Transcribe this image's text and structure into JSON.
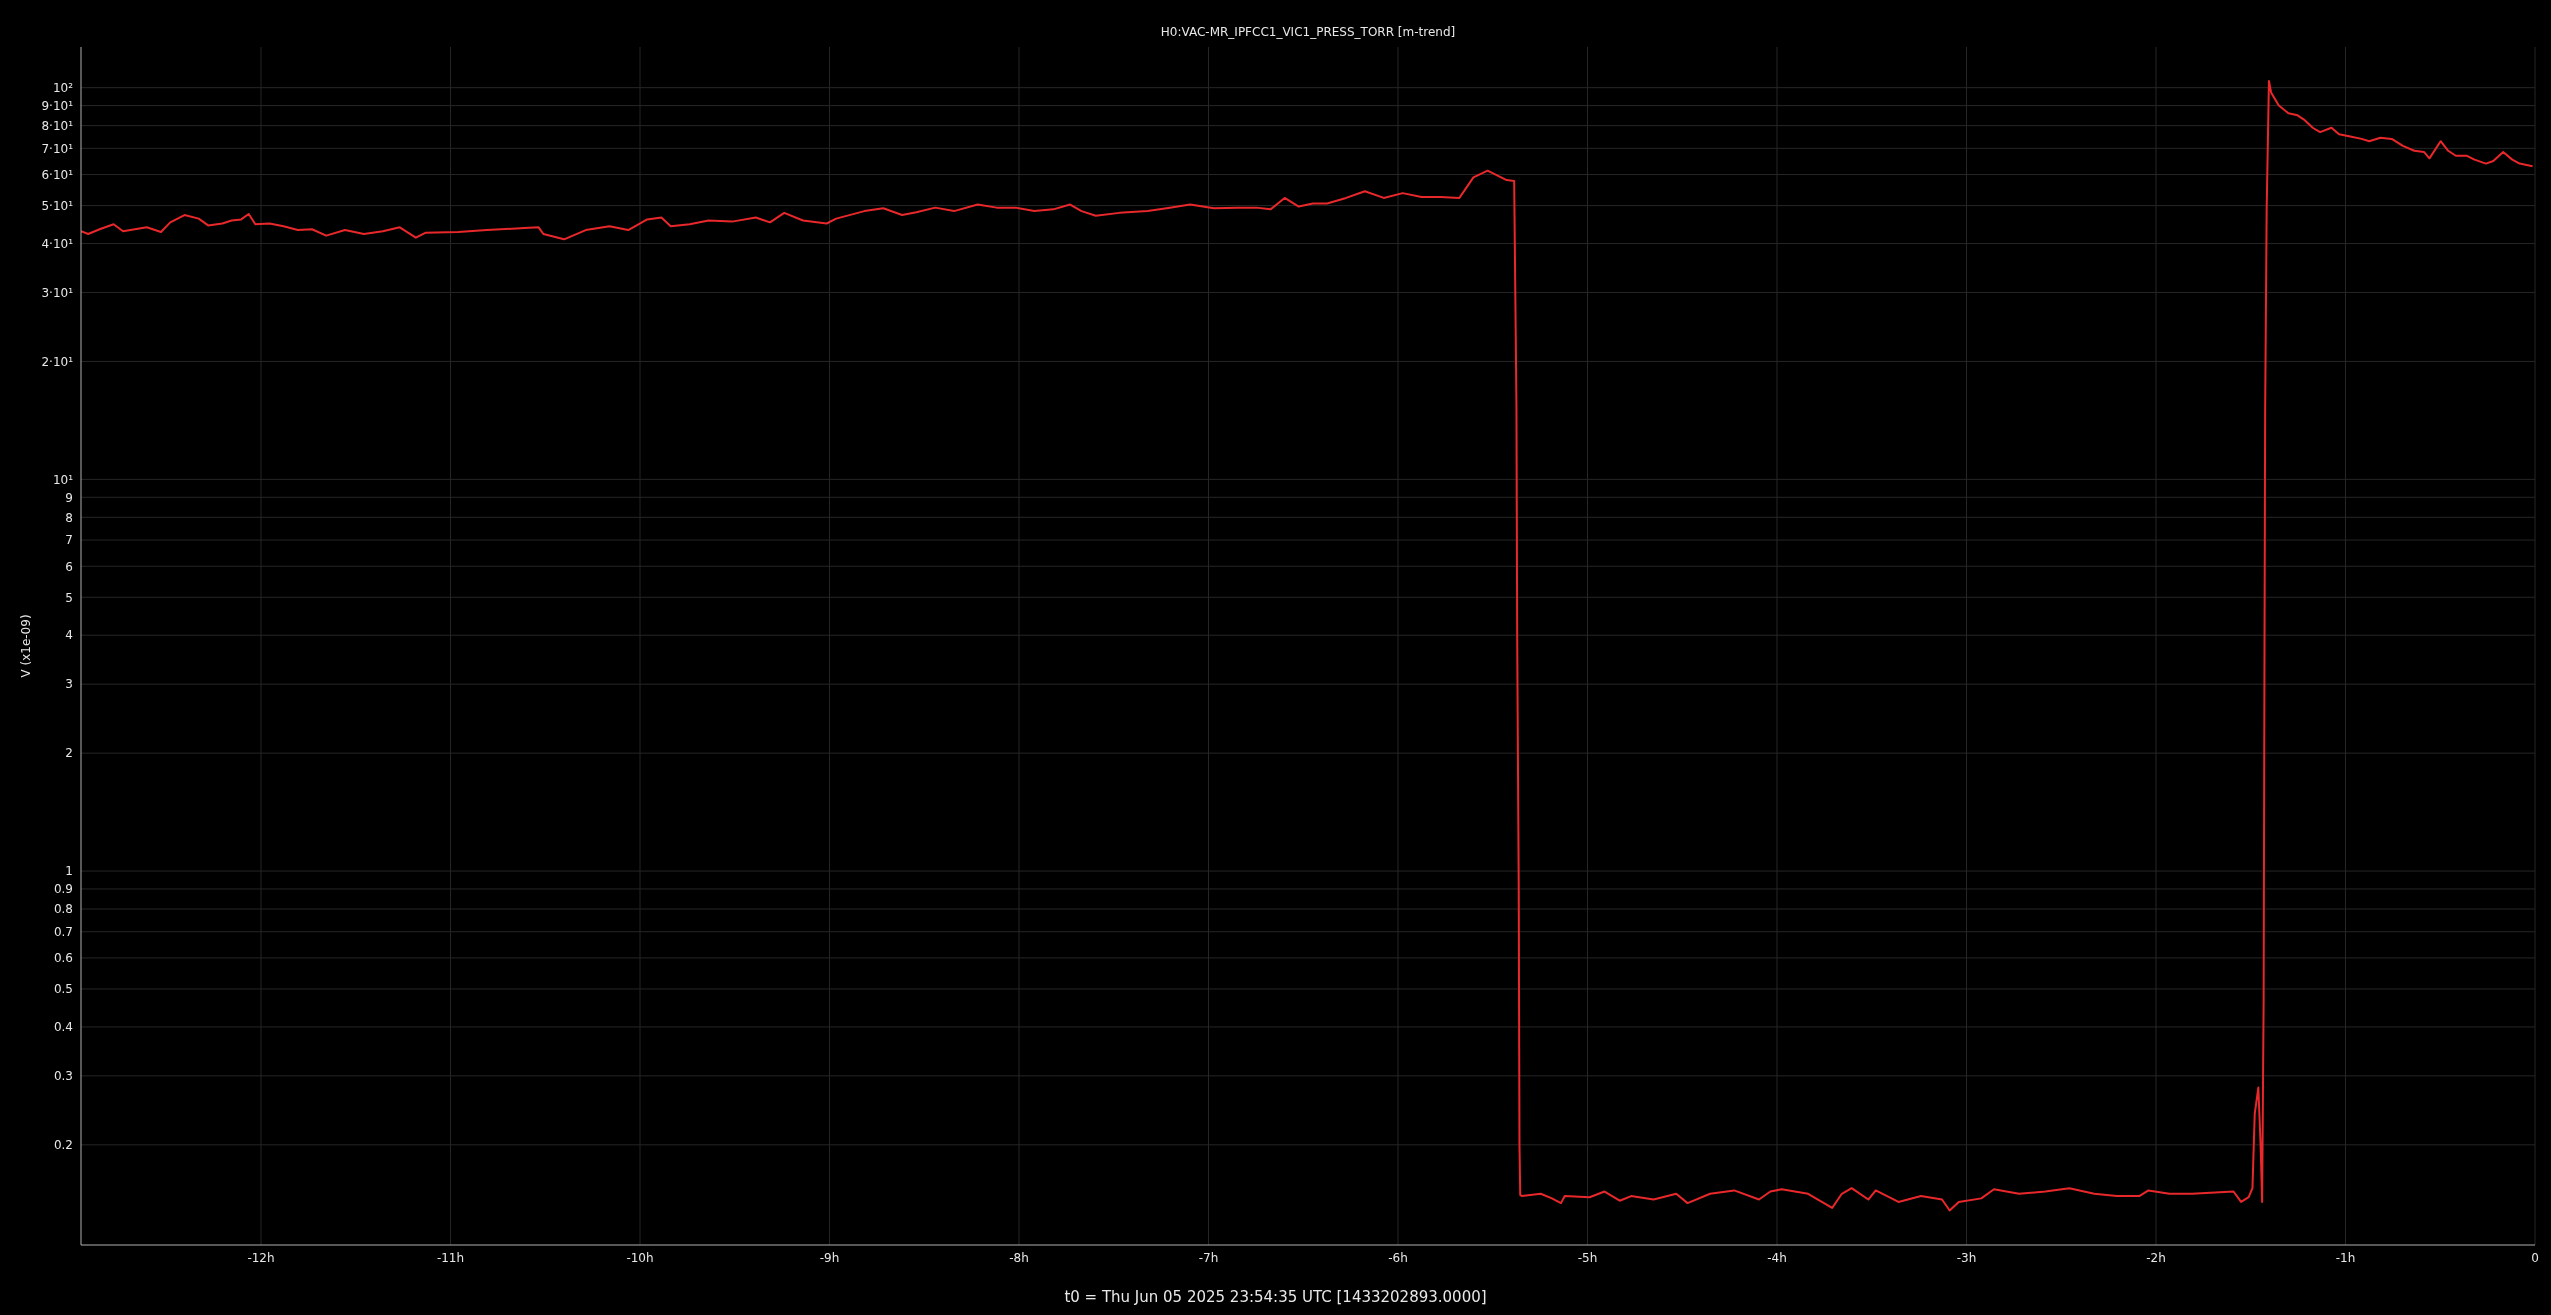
{
  "chart_data": {
    "type": "line",
    "title": "H0:VAC-MR_IPFCC1_VIC1_PRESS_TORR [m-trend]",
    "xlabel": "t0 = Thu Jun 05 2025 23:54:35 UTC [1433202893.0000]",
    "ylabel": "V (x1e-09)",
    "x": [
      -12.95,
      -12.912,
      -12.852,
      -12.778,
      -12.728,
      -12.603,
      -12.528,
      -12.479,
      -12.404,
      -12.329,
      -12.279,
      -12.204,
      -12.155,
      -12.105,
      -12.065,
      -12.03,
      -11.955,
      -11.881,
      -11.806,
      -11.731,
      -11.656,
      -11.557,
      -11.457,
      -11.357,
      -11.268,
      -11.183,
      -11.133,
      -10.959,
      -10.809,
      -10.61,
      -10.535,
      -10.51,
      -10.401,
      -10.286,
      -10.161,
      -10.062,
      -9.962,
      -9.887,
      -9.838,
      -9.738,
      -9.638,
      -9.514,
      -9.389,
      -9.314,
      -9.239,
      -9.14,
      -9.015,
      -8.965,
      -8.816,
      -8.716,
      -8.617,
      -8.542,
      -8.442,
      -8.343,
      -8.218,
      -8.118,
      -8.019,
      -7.919,
      -7.819,
      -7.73,
      -7.67,
      -7.595,
      -7.47,
      -7.321,
      -7.221,
      -7.097,
      -6.972,
      -6.847,
      -6.748,
      -6.673,
      -6.598,
      -6.524,
      -6.449,
      -6.374,
      -6.274,
      -6.175,
      -6.075,
      -5.975,
      -5.876,
      -5.776,
      -5.676,
      -5.602,
      -5.527,
      -5.477,
      -5.427,
      -5.387,
      -5.379,
      -5.375,
      -5.371,
      -5.363,
      -5.359,
      -5.355,
      -5.347,
      -5.247,
      -5.188,
      -5.14,
      -5.12,
      -4.989,
      -4.91,
      -4.83,
      -4.77,
      -4.651,
      -4.532,
      -4.472,
      -4.353,
      -4.226,
      -4.095,
      -4.035,
      -3.975,
      -3.836,
      -3.709,
      -3.658,
      -3.606,
      -3.518,
      -3.479,
      -3.359,
      -3.24,
      -3.129,
      -3.089,
      -3.041,
      -2.922,
      -2.855,
      -2.723,
      -2.584,
      -2.457,
      -2.326,
      -2.207,
      -2.088,
      -2.04,
      -1.929,
      -1.809,
      -1.591,
      -1.551,
      -1.511,
      -1.491,
      -1.479,
      -1.46,
      -1.448,
      -1.44,
      -1.432,
      -1.428,
      -1.424,
      -1.416,
      -1.404,
      -1.392,
      -1.352,
      -1.301,
      -1.253,
      -1.221,
      -1.173,
      -1.134,
      -1.074,
      -1.034,
      -0.975,
      -0.915,
      -0.875,
      -0.816,
      -0.756,
      -0.697,
      -0.637,
      -0.585,
      -0.557,
      -0.498,
      -0.458,
      -0.418,
      -0.359,
      -0.319,
      -0.259,
      -0.22,
      -0.168,
      -0.12,
      -0.081,
      -0.013
    ],
    "series": [
      {
        "color": "#e8282b",
        "values": [
          43,
          42.3,
          43.5,
          44.8,
          43,
          44,
          42.8,
          45.3,
          47.3,
          46.3,
          44.5,
          45,
          45.8,
          46.1,
          47.6,
          44.8,
          45,
          44.3,
          43.3,
          43.5,
          41.9,
          43.3,
          42.3,
          43,
          44,
          41.4,
          42.6,
          42.8,
          43.3,
          43.8,
          44,
          42.3,
          41,
          43.3,
          44.3,
          43.3,
          46.1,
          46.6,
          44.3,
          44.8,
          45.8,
          45.5,
          46.6,
          45.3,
          47.9,
          45.8,
          45,
          46.3,
          48.4,
          49.2,
          47.3,
          48.1,
          49.4,
          48.4,
          50.3,
          49.4,
          49.4,
          48.4,
          48.9,
          50.3,
          48.4,
          47.1,
          47.9,
          48.4,
          49.2,
          50.3,
          49.2,
          49.4,
          49.4,
          48.9,
          52.3,
          49.7,
          50.6,
          50.6,
          52.3,
          54.4,
          52.3,
          53.8,
          52.6,
          52.6,
          52.3,
          59,
          61.4,
          59.7,
          58.1,
          57.8,
          24,
          15.4,
          3.9,
          0.91,
          0.2,
          0.149,
          0.148,
          0.15,
          0.146,
          0.142,
          0.148,
          0.147,
          0.152,
          0.144,
          0.148,
          0.145,
          0.15,
          0.142,
          0.15,
          0.153,
          0.145,
          0.152,
          0.154,
          0.15,
          0.138,
          0.15,
          0.155,
          0.145,
          0.153,
          0.143,
          0.148,
          0.145,
          0.136,
          0.143,
          0.146,
          0.154,
          0.15,
          0.152,
          0.155,
          0.15,
          0.148,
          0.148,
          0.153,
          0.15,
          0.15,
          0.152,
          0.143,
          0.147,
          0.155,
          0.24,
          0.28,
          0.2,
          0.143,
          0.47,
          2.9,
          15,
          49,
          104,
          97,
          90,
          86,
          85,
          83,
          79,
          77,
          79,
          76,
          75,
          74,
          73,
          74.5,
          74,
          71,
          69,
          68.5,
          66,
          73,
          69,
          67,
          67,
          65.5,
          64,
          65,
          68.5,
          65.5,
          64,
          63
        ]
      }
    ],
    "log": "y",
    "xlim": [
      -12.95,
      0
    ],
    "ylim": [
      0.111,
      127
    ],
    "xticks": [
      {
        "value": -12,
        "label": "-12h"
      },
      {
        "value": -11,
        "label": "-11h"
      },
      {
        "value": -10,
        "label": "-10h"
      },
      {
        "value": -9,
        "label": "-9h"
      },
      {
        "value": -8,
        "label": "-8h"
      },
      {
        "value": -7,
        "label": "-7h"
      },
      {
        "value": -6,
        "label": "-6h"
      },
      {
        "value": -5,
        "label": "-5h"
      },
      {
        "value": -4,
        "label": "-4h"
      },
      {
        "value": -3,
        "label": "-3h"
      },
      {
        "value": -2,
        "label": "-2h"
      },
      {
        "value": -1,
        "label": "-1h"
      },
      0
    ],
    "yticks": [
      0.2,
      0.3,
      0.4,
      0.5,
      0.6,
      0.7,
      0.8,
      0.9,
      1,
      2,
      3,
      4,
      5,
      6,
      7,
      8,
      9,
      {
        "value": 10,
        "label": "10¹"
      },
      {
        "value": 20,
        "label": "2·10¹"
      },
      {
        "value": 30,
        "label": "3·10¹"
      },
      {
        "value": 40,
        "label": "4·10¹"
      },
      {
        "value": 50,
        "label": "5·10¹"
      },
      {
        "value": 60,
        "label": "6·10¹"
      },
      {
        "value": 70,
        "label": "7·10¹"
      },
      {
        "value": 80,
        "label": "8·10¹"
      },
      {
        "value": 90,
        "label": "9·10¹"
      },
      {
        "value": 100,
        "label": "10²"
      }
    ],
    "grid": true
  }
}
